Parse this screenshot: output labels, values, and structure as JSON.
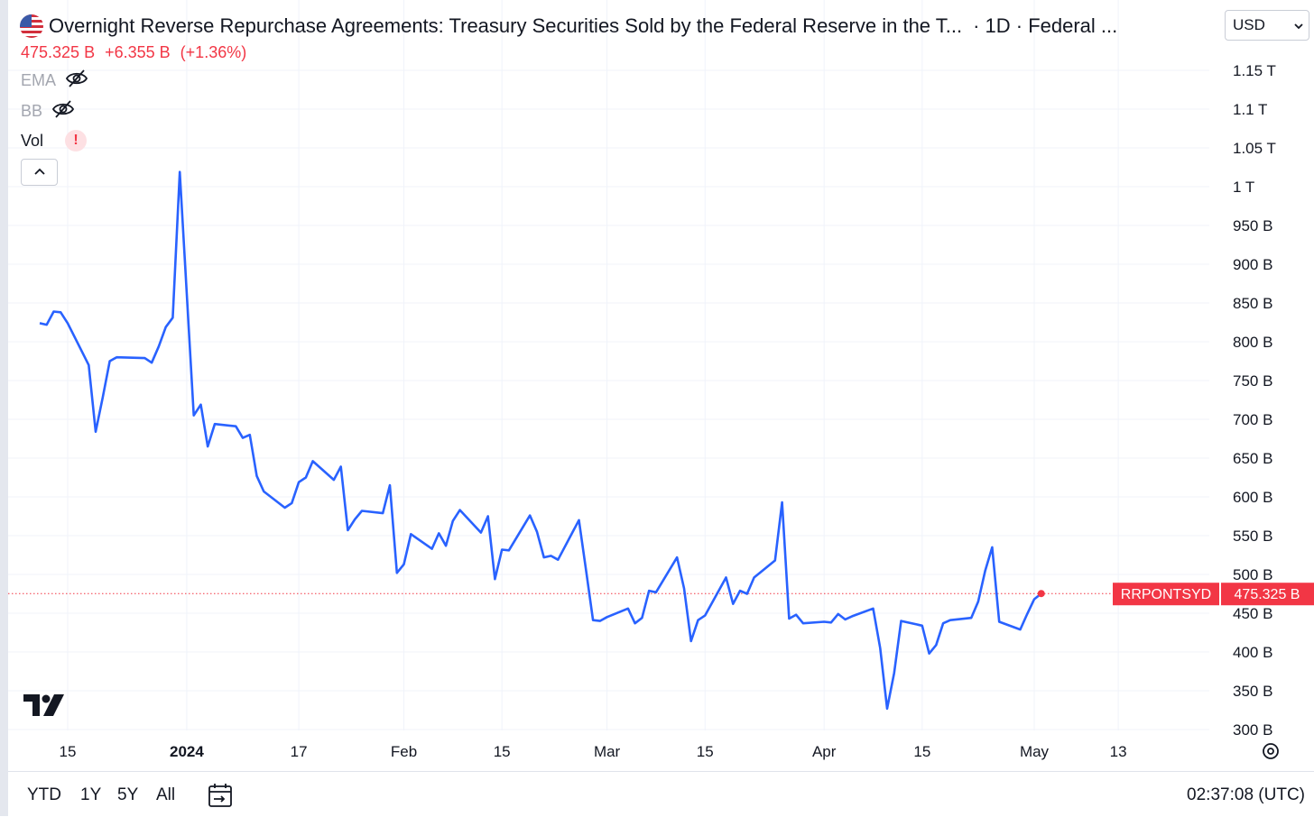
{
  "header": {
    "title": "Overnight Reverse Repurchase Agreements: Treasury Securities Sold by the Federal Reserve in the T...",
    "suffix": "· 1D · Federal ...",
    "flag_icon": "us-flag-icon"
  },
  "price": {
    "value": "475.325 B",
    "change": "+6.355 B",
    "change_pct": "(+1.36%)",
    "color": "#f23645"
  },
  "indicators": [
    {
      "label": "EMA",
      "icon": "eye-off-icon"
    },
    {
      "label": "BB",
      "icon": "eye-off-icon"
    },
    {
      "label": "Vol",
      "icon": "warning-icon",
      "warning": "!"
    }
  ],
  "currency": {
    "value": "USD"
  },
  "bottom": {
    "ranges": [
      "YTD",
      "1Y",
      "5Y",
      "All"
    ],
    "clock": "02:37:08 (UTC)"
  },
  "last_label": {
    "symbol": "RRPONTSYD",
    "value": "475.325 B"
  },
  "chart_data": {
    "type": "line",
    "line_color": "#2962ff",
    "last_value_color": "#f23645",
    "grid": true,
    "y_unit": "B",
    "yticks": [
      {
        "value": 300,
        "label": "300 B"
      },
      {
        "value": 350,
        "label": "350 B"
      },
      {
        "value": 400,
        "label": "400 B"
      },
      {
        "value": 450,
        "label": "450 B"
      },
      {
        "value": 500,
        "label": "500 B"
      },
      {
        "value": 550,
        "label": "550 B"
      },
      {
        "value": 600,
        "label": "600 B"
      },
      {
        "value": 650,
        "label": "650 B"
      },
      {
        "value": 700,
        "label": "700 B"
      },
      {
        "value": 750,
        "label": "750 B"
      },
      {
        "value": 800,
        "label": "800 B"
      },
      {
        "value": 850,
        "label": "850 B"
      },
      {
        "value": 900,
        "label": "900 B"
      },
      {
        "value": 950,
        "label": "950 B"
      },
      {
        "value": 1000,
        "label": "1 T"
      },
      {
        "value": 1050,
        "label": "1.05 T"
      },
      {
        "value": 1100,
        "label": "1.1 T"
      },
      {
        "value": 1150,
        "label": "1.15 T"
      }
    ],
    "xticks": [
      {
        "date": "2023-12-15",
        "label": "15",
        "bold": false
      },
      {
        "date": "2024-01-01",
        "label": "2024",
        "bold": true
      },
      {
        "date": "2024-01-17",
        "label": "17",
        "bold": false
      },
      {
        "date": "2024-02-01",
        "label": "Feb",
        "bold": false
      },
      {
        "date": "2024-02-15",
        "label": "15",
        "bold": false
      },
      {
        "date": "2024-03-01",
        "label": "Mar",
        "bold": false
      },
      {
        "date": "2024-03-15",
        "label": "15",
        "bold": false
      },
      {
        "date": "2024-04-01",
        "label": "Apr",
        "bold": false
      },
      {
        "date": "2024-04-15",
        "label": "15",
        "bold": false
      },
      {
        "date": "2024-05-01",
        "label": "May",
        "bold": false
      },
      {
        "date": "2024-05-13",
        "label": "13",
        "bold": false
      }
    ],
    "series": [
      {
        "points": [
          [
            "2023-12-11",
            824
          ],
          [
            "2023-12-12",
            822
          ],
          [
            "2023-12-13",
            839
          ],
          [
            "2023-12-14",
            838
          ],
          [
            "2023-12-15",
            824
          ],
          [
            "2023-12-18",
            770
          ],
          [
            "2023-12-19",
            684
          ],
          [
            "2023-12-20",
            728
          ],
          [
            "2023-12-21",
            775
          ],
          [
            "2023-12-22",
            780
          ],
          [
            "2023-12-26",
            779
          ],
          [
            "2023-12-27",
            773
          ],
          [
            "2023-12-28",
            794
          ],
          [
            "2023-12-29",
            819
          ],
          [
            "2023-12-30",
            831
          ],
          [
            "2023-12-31",
            1019
          ],
          [
            "2024-01-02",
            705
          ],
          [
            "2024-01-03",
            719
          ],
          [
            "2024-01-04",
            665
          ],
          [
            "2024-01-05",
            694
          ],
          [
            "2024-01-08",
            691
          ],
          [
            "2024-01-09",
            676
          ],
          [
            "2024-01-10",
            680
          ],
          [
            "2024-01-11",
            627
          ],
          [
            "2024-01-12",
            607
          ],
          [
            "2024-01-15",
            586
          ],
          [
            "2024-01-16",
            592
          ],
          [
            "2024-01-17",
            619
          ],
          [
            "2024-01-18",
            625
          ],
          [
            "2024-01-19",
            646
          ],
          [
            "2024-01-22",
            622
          ],
          [
            "2024-01-23",
            639
          ],
          [
            "2024-01-24",
            557
          ],
          [
            "2024-01-25",
            571
          ],
          [
            "2024-01-26",
            582
          ],
          [
            "2024-01-29",
            579
          ],
          [
            "2024-01-30",
            615
          ],
          [
            "2024-01-31",
            502
          ],
          [
            "2024-02-01",
            513
          ],
          [
            "2024-02-02",
            552
          ],
          [
            "2024-02-05",
            533
          ],
          [
            "2024-02-06",
            553
          ],
          [
            "2024-02-07",
            537
          ],
          [
            "2024-02-08",
            569
          ],
          [
            "2024-02-09",
            583
          ],
          [
            "2024-02-12",
            554
          ],
          [
            "2024-02-13",
            575
          ],
          [
            "2024-02-14",
            494
          ],
          [
            "2024-02-15",
            532
          ],
          [
            "2024-02-16",
            531
          ],
          [
            "2024-02-19",
            576
          ],
          [
            "2024-02-20",
            555
          ],
          [
            "2024-02-21",
            522
          ],
          [
            "2024-02-22",
            524
          ],
          [
            "2024-02-23",
            519
          ],
          [
            "2024-02-26",
            570
          ],
          [
            "2024-02-27",
            506
          ],
          [
            "2024-02-28",
            441
          ],
          [
            "2024-02-29",
            440
          ],
          [
            "2024-03-01",
            445
          ],
          [
            "2024-03-04",
            456
          ],
          [
            "2024-03-05",
            437
          ],
          [
            "2024-03-06",
            444
          ],
          [
            "2024-03-07",
            479
          ],
          [
            "2024-03-08",
            477
          ],
          [
            "2024-03-11",
            522
          ],
          [
            "2024-03-12",
            482
          ],
          [
            "2024-03-13",
            414
          ],
          [
            "2024-03-14",
            441
          ],
          [
            "2024-03-15",
            447
          ],
          [
            "2024-03-18",
            496
          ],
          [
            "2024-03-19",
            462
          ],
          [
            "2024-03-20",
            479
          ],
          [
            "2024-03-21",
            475
          ],
          [
            "2024-03-22",
            496
          ],
          [
            "2024-03-25",
            518
          ],
          [
            "2024-03-26",
            593
          ],
          [
            "2024-03-27",
            443
          ],
          [
            "2024-03-28",
            448
          ],
          [
            "2024-03-29",
            437
          ],
          [
            "2024-04-01",
            439
          ],
          [
            "2024-04-02",
            438
          ],
          [
            "2024-04-03",
            449
          ],
          [
            "2024-04-04",
            442
          ],
          [
            "2024-04-05",
            446
          ],
          [
            "2024-04-08",
            456
          ],
          [
            "2024-04-09",
            405
          ],
          [
            "2024-04-10",
            327
          ],
          [
            "2024-04-11",
            373
          ],
          [
            "2024-04-12",
            440
          ],
          [
            "2024-04-15",
            434
          ],
          [
            "2024-04-16",
            398
          ],
          [
            "2024-04-17",
            409
          ],
          [
            "2024-04-18",
            437
          ],
          [
            "2024-04-19",
            441
          ],
          [
            "2024-04-22",
            444
          ],
          [
            "2024-04-23",
            465
          ],
          [
            "2024-04-24",
            505
          ],
          [
            "2024-04-25",
            535
          ],
          [
            "2024-04-26",
            439
          ],
          [
            "2024-04-29",
            429
          ],
          [
            "2024-04-30",
            449
          ],
          [
            "2024-05-01",
            468
          ],
          [
            "2024-05-02",
            475.325
          ]
        ]
      }
    ]
  }
}
